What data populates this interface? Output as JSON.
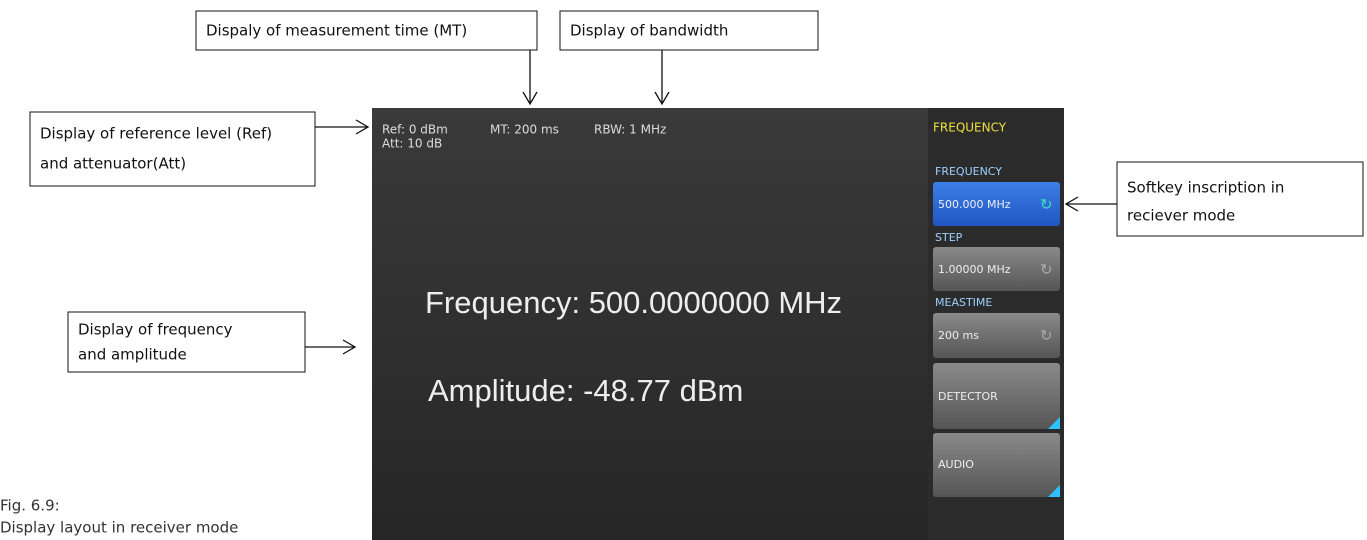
{
  "callouts": [
    {
      "lines": [
        "Dispaly of measurement time (MT)"
      ]
    },
    {
      "lines": [
        "Display of bandwidth"
      ]
    },
    {
      "lines": [
        "Display of reference level (Ref)",
        "and attenuator(Att)"
      ]
    },
    {
      "lines": [
        "Display of frequency",
        "and amplitude"
      ]
    },
    {
      "lines": [
        "Softkey inscription in",
        "reciever mode"
      ]
    }
  ],
  "screen": {
    "header": {
      "ref": "Ref: 0 dBm",
      "att": "Att: 10 dB",
      "mt": "MT: 200 ms",
      "rbw": "RBW: 1 MHz"
    },
    "menu_title": "FREQUENCY",
    "frequency": "Frequency: 500.0000000 MHz",
    "amplitude": "Amplitude: -48.77 dBm",
    "softkeys": [
      {
        "label": "FREQUENCY",
        "text": "500.000 MHz"
      },
      {
        "label": "STEP",
        "text": "1.00000 MHz"
      },
      {
        "label": "MEASTIME",
        "text": "200 ms"
      },
      {
        "text": "DETECTOR"
      },
      {
        "text": "AUDIO"
      }
    ]
  },
  "caption": [
    "Fig. 6.9:",
    "Display layout in receiver mode"
  ]
}
